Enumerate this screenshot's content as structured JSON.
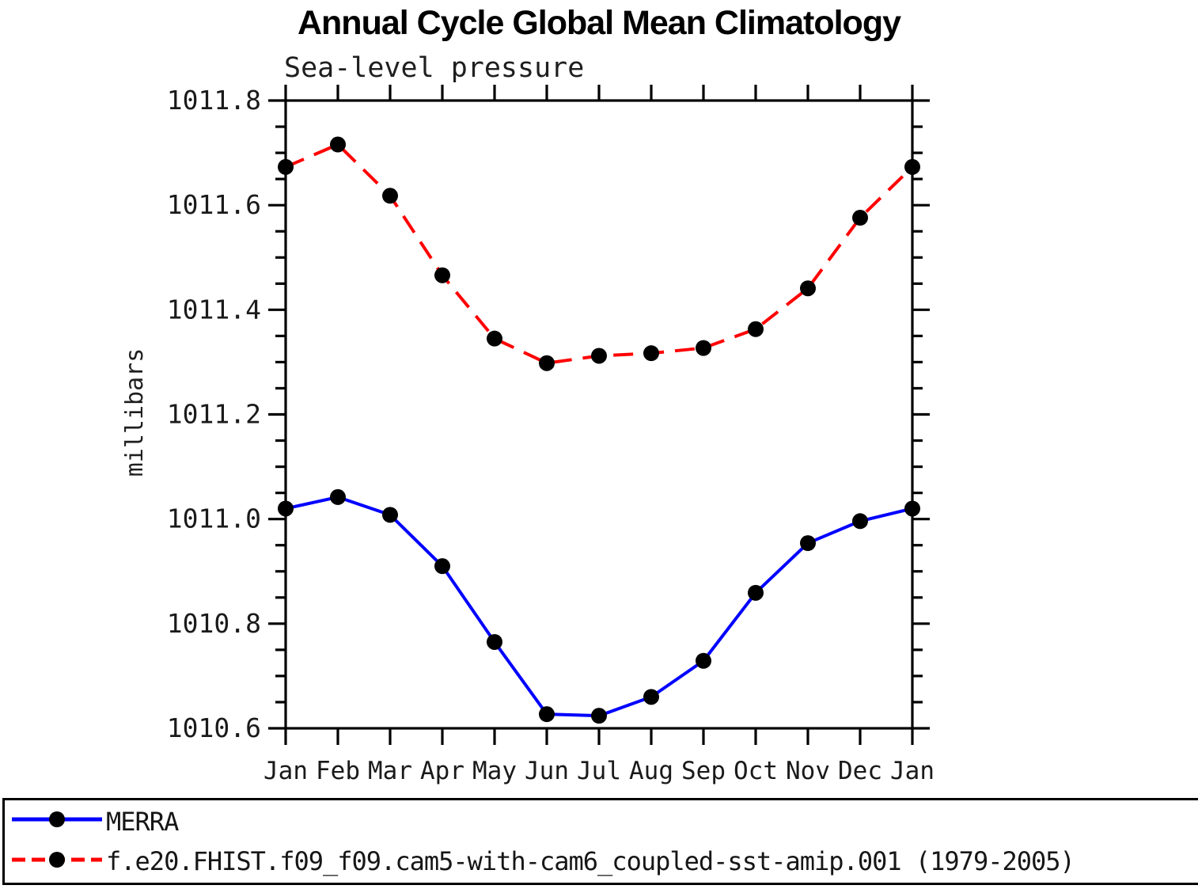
{
  "title": "Annual Cycle Global Mean Climatology",
  "subtitle": "Sea-level pressure",
  "chart_data": {
    "type": "line",
    "title": "Annual Cycle Global Mean Climatology",
    "subtitle": "Sea-level pressure",
    "xlabel": "",
    "ylabel": "millibars",
    "x_categories": [
      "Jan",
      "Feb",
      "Mar",
      "Apr",
      "May",
      "Jun",
      "Jul",
      "Aug",
      "Sep",
      "Oct",
      "Nov",
      "Dec",
      "Jan"
    ],
    "ylim": [
      1010.6,
      1011.8
    ],
    "y_major_tick_interval": 0.2,
    "y_minor_tick_interval": 0.05,
    "y_tick_labels": [
      "1010.6",
      "1010.8",
      "1011.0",
      "1011.2",
      "1011.4",
      "1011.6",
      "1011.8"
    ],
    "grid": false,
    "legend_position": "bottom",
    "axis_color": "#000000",
    "series": [
      {
        "name": "MERRA",
        "color": "#0000ff",
        "line_style": "solid",
        "marker": "filled-circle",
        "marker_color": "#000000",
        "values": [
          1011.02,
          1011.042,
          1011.008,
          1010.91,
          1010.765,
          1010.627,
          1010.624,
          1010.66,
          1010.729,
          1010.859,
          1010.954,
          1010.996,
          1011.02
        ]
      },
      {
        "name": "f.e20.FHIST.f09_f09.cam5-with-cam6_coupled-sst-amip.001 (1979-2005)",
        "color": "#ff0000",
        "line_style": "dashed",
        "marker": "filled-circle",
        "marker_color": "#000000",
        "values": [
          1011.673,
          1011.716,
          1011.618,
          1011.466,
          1011.345,
          1011.298,
          1011.312,
          1011.317,
          1011.327,
          1011.363,
          1011.441,
          1011.576,
          1011.673
        ]
      }
    ]
  }
}
